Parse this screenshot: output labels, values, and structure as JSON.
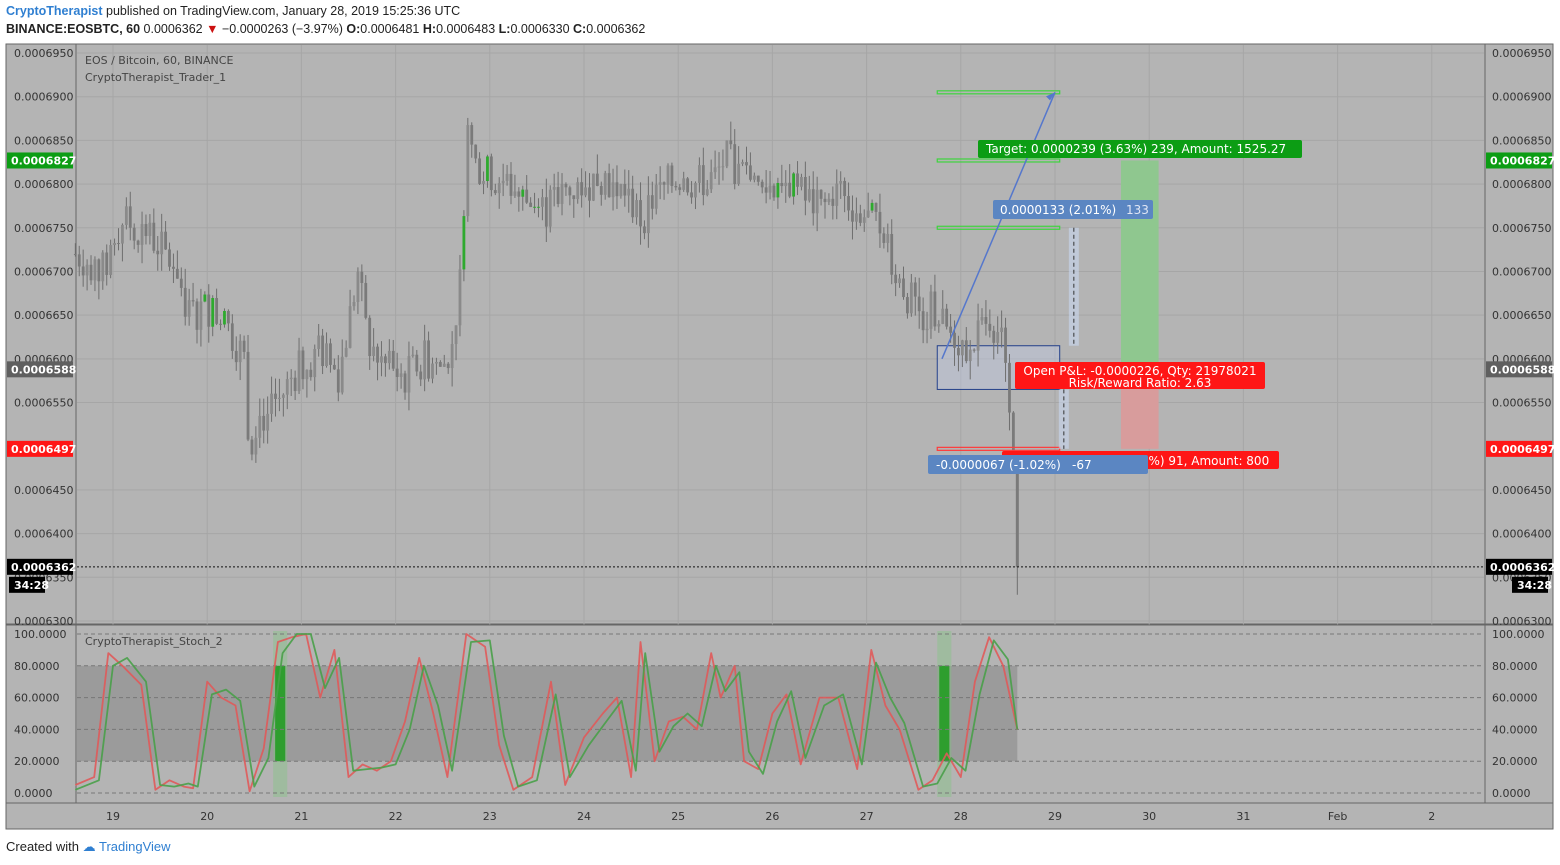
{
  "header": {
    "author": "CryptoTherapist",
    "published_text": "published on TradingView.com, January 28, 2019 15:25:36 UTC",
    "symbol": "BINANCE:EOSBTC, 60",
    "last": "0.0006362",
    "change_arrow": "▼",
    "change": "−0.0000263 (−3.97%)",
    "o_label": "O:",
    "o_val": "0.0006481",
    "h_label": "H:",
    "h_val": "0.0006483",
    "l_label": "L:",
    "l_val": "0.0006330",
    "c_label": "C:",
    "c_val": "0.0006362"
  },
  "legend": {
    "pair": "EOS / Bitcoin, 60, BINANCE",
    "indicator": "CryptoTherapist_Trader_1"
  },
  "osc_legend": "CryptoTherapist_Stoch_2",
  "footer": {
    "created_with": "Created with",
    "brand": "TradingView"
  },
  "colors": {
    "pane_bg": "#b4b4b4",
    "green_label": "#0c9d14",
    "red_label": "#ff1616",
    "blue_label": "#5b86c2",
    "target_zone": "#8fc78f",
    "stop_zone": "#d89c9c",
    "up_candle": "#2eaa2e",
    "k_line": "#e05a5a",
    "d_line": "#49a049"
  },
  "chart_data": [
    {
      "type": "candlestick",
      "title": "EOS / Bitcoin, 60, BINANCE",
      "y_ticks": [
        "0.0006950",
        "0.0006900",
        "0.0006850",
        "0.0006800",
        "0.0006750",
        "0.0006700",
        "0.0006650",
        "0.0006600",
        "0.0006550",
        "0.0006450",
        "0.0006400",
        "0.0006350",
        "0.0006300"
      ],
      "ylim": [
        0.00063,
        0.000696
      ],
      "x_ticks": [
        "19",
        "20",
        "21",
        "22",
        "23",
        "24",
        "25",
        "26",
        "27",
        "28",
        "29",
        "30",
        "31",
        "Feb",
        "2"
      ],
      "xlim_days": [
        18.6,
        33.6
      ],
      "close_path": [
        [
          18.6,
          0.000672
        ],
        [
          18.9,
          0.00067
        ],
        [
          19.1,
          0.000676
        ],
        [
          19.4,
          0.000674
        ],
        [
          19.7,
          0.00067
        ],
        [
          19.8,
          0.000665
        ],
        [
          20.0,
          0.000666
        ],
        [
          20.2,
          0.000664
        ],
        [
          20.4,
          0.00066
        ],
        [
          20.45,
          0.000649
        ],
        [
          20.5,
          0.000653
        ],
        [
          20.7,
          0.000654
        ],
        [
          20.9,
          0.000658
        ],
        [
          21.2,
          0.000661
        ],
        [
          21.4,
          0.000658
        ],
        [
          21.5,
          0.000664
        ],
        [
          21.6,
          0.00067
        ],
        [
          21.7,
          0.000662
        ],
        [
          21.9,
          0.000659
        ],
        [
          22.1,
          0.000658
        ],
        [
          22.3,
          0.00066
        ],
        [
          22.5,
          0.000659
        ],
        [
          22.6,
          0.000662
        ],
        [
          22.7,
          0.00067
        ],
        [
          22.75,
          0.000687
        ],
        [
          22.85,
          0.000682
        ],
        [
          23.0,
          0.000681
        ],
        [
          23.2,
          0.00068
        ],
        [
          23.4,
          0.000678
        ],
        [
          23.6,
          0.000677
        ],
        [
          23.8,
          0.000679
        ],
        [
          24.0,
          0.00068
        ],
        [
          24.2,
          0.000681
        ],
        [
          24.5,
          0.000678
        ],
        [
          24.6,
          0.000676
        ],
        [
          24.8,
          0.000679
        ],
        [
          25.0,
          0.000681
        ],
        [
          25.2,
          0.00068
        ],
        [
          25.4,
          0.000681
        ],
        [
          25.5,
          0.000683
        ],
        [
          25.7,
          0.000681
        ],
        [
          25.9,
          0.000679
        ],
        [
          26.1,
          0.000681
        ],
        [
          26.3,
          0.000679
        ],
        [
          26.5,
          0.000677
        ],
        [
          26.7,
          0.000679
        ],
        [
          26.9,
          0.000677
        ],
        [
          27.0,
          0.000676
        ],
        [
          27.2,
          0.000675
        ],
        [
          27.3,
          0.00067
        ],
        [
          27.45,
          0.000667
        ],
        [
          27.6,
          0.000665
        ],
        [
          27.7,
          0.000666
        ],
        [
          27.8,
          0.000664
        ],
        [
          27.9,
          0.000663
        ],
        [
          28.0,
          0.000662
        ],
        [
          28.1,
          0.00066
        ],
        [
          28.2,
          0.000663
        ],
        [
          28.3,
          0.000665
        ],
        [
          28.4,
          0.000663
        ],
        [
          28.5,
          0.00066
        ],
        [
          28.55,
          0.0006481
        ],
        [
          28.6,
          0.0006362
        ]
      ],
      "last_candle": {
        "open": 0.0006481,
        "high": 0.0006483,
        "low": 0.000633,
        "close": 0.0006362
      },
      "position": {
        "entry_left": 0.0006588,
        "entry_right": 0.0006497,
        "target": 0.0006827,
        "stop": 0.0006497,
        "box_top": 0.0006615,
        "box_bottom": 0.0006565,
        "level_top": 0.0006905,
        "level_mid": 0.000675,
        "zone_days": [
          29.7,
          30.1
        ],
        "entry_days": [
          27.75,
          29.05
        ],
        "projection_from": [
          27.8,
          0.00066
        ],
        "projection_to": [
          29.0,
          0.0006905
        ],
        "measure_x": 29.2
      },
      "price_labels": [
        {
          "value": "0.0006827",
          "kind": "green"
        },
        {
          "value": "0.0006588",
          "kind": "gray"
        },
        {
          "value": "0.0006497",
          "kind": "red"
        },
        {
          "value": "0.0006362",
          "kind": "black"
        }
      ],
      "countdown": "34:28",
      "annotations": {
        "target": "Target: 0.0000239 (3.63%) 239, Amount: 1525.27",
        "up_measure_value": "0.0000133 (2.01%)",
        "up_measure_ticks": "133",
        "pnl_line1": "Open P&L: -0.0000226, Qty: 21978021",
        "pnl_line2": "Risk/Reward Ratio: 2.63",
        "stop": "01 (1.38%) 91, Amount: 800",
        "down_measure_value": "-0.0000067 (-1.02%)",
        "down_measure_ticks": "-67"
      }
    },
    {
      "type": "line",
      "title": "CryptoTherapist_Stoch_2",
      "y_ticks": [
        "100.0000",
        "80.0000",
        "60.0000",
        "40.0000",
        "20.0000",
        "0.0000"
      ],
      "ylim": [
        0,
        100
      ],
      "band": [
        20,
        80
      ],
      "series": [
        {
          "color": "#e05a5a",
          "x": [
            18.6,
            18.8,
            18.95,
            19.1,
            19.3,
            19.45,
            19.6,
            19.75,
            19.85,
            20.0,
            20.15,
            20.3,
            20.45,
            20.6,
            20.75,
            20.9,
            21.05,
            21.2,
            21.35,
            21.5,
            21.65,
            21.8,
            21.95,
            22.1,
            22.25,
            22.4,
            22.55,
            22.75,
            22.95,
            23.1,
            23.25,
            23.45,
            23.65,
            23.8,
            24.0,
            24.2,
            24.35,
            24.5,
            24.6,
            24.75,
            24.9,
            25.05,
            25.2,
            25.35,
            25.45,
            25.6,
            25.7,
            25.85,
            26.0,
            26.15,
            26.3,
            26.5,
            26.7,
            26.9,
            27.05,
            27.2,
            27.35,
            27.55,
            27.7,
            27.85,
            28.0,
            28.15,
            28.3,
            28.45,
            28.6
          ],
          "values": [
            5,
            10,
            88,
            80,
            68,
            2,
            8,
            4,
            3,
            70,
            60,
            55,
            1,
            28,
            95,
            98,
            100,
            60,
            90,
            10,
            18,
            14,
            20,
            45,
            85,
            50,
            10,
            100,
            92,
            30,
            2,
            10,
            70,
            5,
            35,
            50,
            60,
            10,
            95,
            20,
            45,
            48,
            40,
            88,
            60,
            80,
            20,
            15,
            50,
            62,
            18,
            60,
            60,
            15,
            90,
            55,
            40,
            2,
            8,
            25,
            10,
            70,
            98,
            80,
            40
          ]
        },
        {
          "color": "#49a049",
          "x": [
            18.6,
            18.85,
            19.0,
            19.15,
            19.35,
            19.5,
            19.65,
            19.8,
            19.9,
            20.05,
            20.2,
            20.35,
            20.5,
            20.65,
            20.8,
            20.95,
            21.1,
            21.25,
            21.4,
            21.55,
            21.7,
            21.85,
            22.0,
            22.15,
            22.3,
            22.45,
            22.6,
            22.8,
            23.0,
            23.15,
            23.3,
            23.5,
            23.7,
            23.85,
            24.05,
            24.25,
            24.4,
            24.55,
            24.65,
            24.8,
            24.95,
            25.1,
            25.25,
            25.4,
            25.5,
            25.65,
            25.75,
            25.9,
            26.05,
            26.2,
            26.35,
            26.55,
            26.75,
            26.95,
            27.1,
            27.25,
            27.4,
            27.6,
            27.75,
            27.9,
            28.05,
            28.2,
            28.35,
            28.5,
            28.6
          ],
          "values": [
            2,
            8,
            80,
            85,
            70,
            5,
            4,
            6,
            4,
            62,
            65,
            58,
            4,
            22,
            88,
            100,
            100,
            66,
            85,
            14,
            15,
            16,
            18,
            40,
            80,
            55,
            14,
            95,
            96,
            36,
            4,
            8,
            62,
            10,
            30,
            46,
            58,
            14,
            88,
            26,
            42,
            50,
            42,
            80,
            64,
            76,
            26,
            12,
            45,
            64,
            22,
            55,
            62,
            18,
            82,
            60,
            44,
            4,
            6,
            22,
            14,
            62,
            96,
            84,
            40
          ]
        }
      ],
      "highlight_bars_days": [
        [
          20.7,
          20.85
        ],
        [
          27.75,
          27.9
        ]
      ],
      "axis_tags": [
        "100.0000",
        "80.0000",
        "60.0000",
        "40.0000",
        "20.0000",
        "0.0000"
      ]
    }
  ]
}
